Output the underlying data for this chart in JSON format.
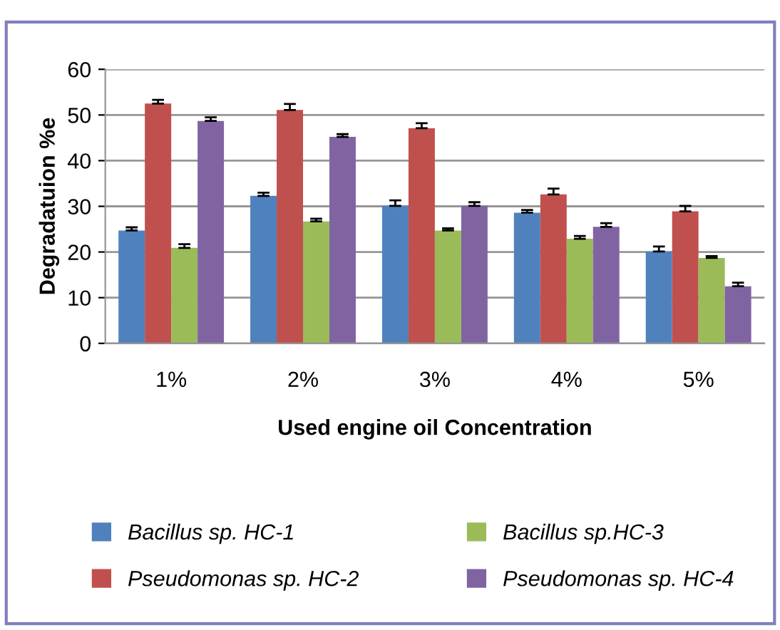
{
  "chart_data": {
    "type": "bar",
    "xlabel": "Used engine oil Concentration",
    "ylabel": "Degradatuion %e",
    "categories": [
      "1%",
      "2%",
      "3%",
      "4%",
      "5%"
    ],
    "series": [
      {
        "name": "Bacillus sp. HC-1",
        "color": "#4f81bd",
        "values": [
          24.7,
          32.3,
          30.1,
          28.6,
          20.1
        ],
        "errors": [
          [
            24.7,
            25.4
          ],
          [
            32.3,
            33.0
          ],
          [
            30.1,
            31.3
          ],
          [
            28.6,
            29.2
          ],
          [
            20.1,
            21.2
          ]
        ]
      },
      {
        "name": "Pseudomonas sp. HC-2",
        "color": "#c0504d",
        "values": [
          52.5,
          51.1,
          47.1,
          32.6,
          28.9
        ],
        "errors": [
          [
            52.5,
            53.3
          ],
          [
            51.1,
            52.4
          ],
          [
            47.1,
            48.2
          ],
          [
            32.6,
            33.9
          ],
          [
            28.9,
            30.1
          ]
        ]
      },
      {
        "name": "Bacillus sp.HC-3",
        "color": "#9bbb59",
        "values": [
          20.9,
          26.7,
          24.7,
          22.9,
          18.7
        ],
        "errors": [
          [
            20.9,
            21.7
          ],
          [
            26.7,
            27.3
          ],
          [
            24.7,
            25.2
          ],
          [
            22.9,
            23.5
          ],
          [
            18.7,
            19.1
          ]
        ]
      },
      {
        "name": "Pseudomonas sp. HC-4",
        "color": "#8064a2",
        "values": [
          48.7,
          45.2,
          30.1,
          25.5,
          12.5
        ],
        "errors": [
          [
            48.7,
            49.5
          ],
          [
            45.2,
            45.8
          ],
          [
            30.1,
            30.9
          ],
          [
            25.5,
            26.3
          ],
          [
            12.5,
            13.3
          ]
        ]
      }
    ],
    "ylim": [
      0,
      60
    ],
    "yticks": [
      0,
      10,
      20,
      30,
      40,
      50,
      60
    ],
    "grid": "y",
    "legend": "bottom"
  }
}
